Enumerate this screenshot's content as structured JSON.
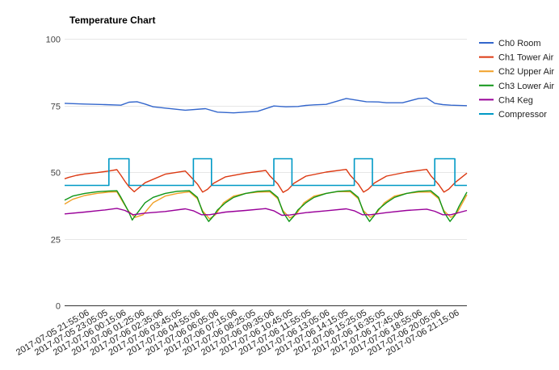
{
  "chart_data": {
    "type": "line",
    "title": "Temperature Chart",
    "xlabel": "",
    "ylabel": "",
    "ylim": [
      0,
      100
    ],
    "y_ticks": [
      0,
      25,
      50,
      75,
      100
    ],
    "grid": true,
    "legend_position": "right",
    "x_tick_labels": [
      "2017-07-05 21:55:06",
      "2017-07-05 23:05:05",
      "2017-07-06 00:15:06",
      "2017-07-06 01:25:06",
      "2017-07-06 02:35:06",
      "2017-07-06 03:45:05",
      "2017-07-06 04:55:06",
      "2017-07-06 06:05:06",
      "2017-07-06 07:15:06",
      "2017-07-06 08:25:05",
      "2017-07-06 09:35:06",
      "2017-07-06 10:45:05",
      "2017-07-06 11:55:05",
      "2017-07-06 13:05:06",
      "2017-07-06 14:15:05",
      "2017-07-06 15:25:05",
      "2017-07-06 16:35:05",
      "2017-07-06 17:45:06",
      "2017-07-06 18:55:06",
      "2017-07-06 20:05:06",
      "2017-07-06 21:15:06"
    ],
    "x_range": [
      0,
      100
    ],
    "series": [
      {
        "name": "Ch0 Room",
        "color": "#3366cc",
        "x": [
          0,
          5,
          10,
          14,
          16,
          18,
          20,
          22,
          25,
          30,
          35,
          38,
          42,
          48,
          52,
          55,
          58,
          60,
          62,
          65,
          70,
          75,
          78,
          80,
          84,
          88,
          90,
          92,
          94,
          96,
          100
        ],
        "values": [
          75.8,
          75.5,
          75.3,
          75.1,
          76.2,
          76.4,
          75.5,
          74.5,
          74.0,
          73.2,
          73.8,
          72.5,
          72.2,
          72.8,
          74.8,
          74.5,
          74.6,
          75.0,
          75.2,
          75.4,
          77.6,
          76.4,
          76.3,
          76.0,
          76.0,
          77.6,
          77.8,
          75.8,
          75.3,
          75.1,
          74.9
        ]
      },
      {
        "name": "Ch1 Tower Air",
        "color": "#dc3912",
        "x": [
          0,
          1,
          3,
          5,
          8,
          11,
          13,
          14,
          15,
          16,
          17.3,
          18,
          20,
          25,
          30,
          31,
          33,
          34.3,
          35.5,
          37,
          40,
          45,
          50,
          51,
          53,
          54.3,
          55.5,
          57,
          60,
          65,
          70,
          71,
          73,
          74.3,
          75.5,
          77,
          80,
          85,
          90,
          91,
          93,
          94.3,
          95.5,
          97,
          100
        ],
        "values": [
          47.5,
          48,
          48.8,
          49.3,
          49.8,
          50.4,
          50.9,
          48.8,
          46.5,
          44.5,
          42.6,
          43.5,
          46.0,
          49.2,
          50.4,
          48.8,
          45.5,
          42.5,
          43.5,
          45.8,
          48.2,
          49.6,
          50.6,
          48.6,
          45.5,
          42.4,
          43.4,
          45.8,
          48.5,
          50.0,
          51.0,
          48.8,
          45.5,
          42.5,
          43.6,
          45.9,
          48.5,
          50.0,
          51.0,
          48.7,
          45.3,
          42.5,
          43.6,
          46.0,
          49.6
        ]
      },
      {
        "name": "Ch2 Upper Air",
        "color": "#f1a128",
        "x": [
          0,
          2,
          5,
          8,
          11,
          13,
          14,
          15.8,
          17.5,
          19.5,
          22,
          25,
          28,
          31,
          33,
          34.3,
          36,
          37.5,
          39.5,
          42,
          45,
          48,
          51,
          53,
          54.3,
          56,
          57.5,
          59.5,
          62,
          65,
          68,
          71,
          73,
          74.3,
          76,
          77.5,
          79.5,
          82,
          85,
          88,
          91,
          93,
          94.3,
          96,
          97.5,
          100
        ],
        "values": [
          38.0,
          39.8,
          41.2,
          42.0,
          42.5,
          42.6,
          40.0,
          35.5,
          33.0,
          34.0,
          38.5,
          41.0,
          42.0,
          42.6,
          40.0,
          35.5,
          32.5,
          34.0,
          38.5,
          41.0,
          42.0,
          42.5,
          42.6,
          40.0,
          35.5,
          32.8,
          34.0,
          38.5,
          41.0,
          42.0,
          42.7,
          42.6,
          40.0,
          35.5,
          33.0,
          34.5,
          38.5,
          41.0,
          42.0,
          42.5,
          42.5,
          40.0,
          35.5,
          33.0,
          34.5,
          41.5
        ]
      },
      {
        "name": "Ch3 Lower Air",
        "color": "#109618",
        "x": [
          0,
          2,
          5,
          8,
          11,
          13,
          14,
          15.8,
          16.8,
          17.5,
          18.5,
          20,
          22,
          25,
          28,
          31,
          33,
          34.3,
          35.8,
          37,
          38,
          40,
          42,
          45,
          48,
          51,
          53,
          54.3,
          55.8,
          57,
          58,
          60,
          62,
          65,
          68,
          71,
          73,
          74.3,
          75.8,
          77,
          78,
          80,
          82,
          85,
          88,
          91,
          93,
          94.3,
          95.8,
          97,
          98,
          100
        ],
        "values": [
          39.5,
          41.0,
          42.0,
          42.6,
          42.9,
          43.0,
          40.5,
          35.5,
          32.0,
          33.5,
          35.5,
          38.5,
          40.5,
          42.0,
          42.8,
          43.0,
          40.5,
          35.0,
          31.5,
          33.5,
          35.8,
          38.5,
          40.5,
          42.0,
          42.8,
          43.0,
          40.5,
          35.0,
          31.5,
          33.5,
          35.8,
          38.5,
          40.5,
          42.0,
          42.8,
          43.0,
          40.5,
          35.0,
          31.5,
          33.8,
          36.0,
          38.5,
          40.5,
          42.0,
          42.8,
          43.0,
          40.5,
          35.0,
          31.5,
          33.8,
          37.0,
          42.5
        ]
      },
      {
        "name": "Ch4 Keg",
        "color": "#990099",
        "x": [
          0,
          5,
          10,
          13,
          15,
          17,
          20,
          25,
          30,
          32,
          34,
          36,
          40,
          45,
          50,
          52,
          54,
          56,
          60,
          65,
          70,
          72,
          74,
          76,
          80,
          85,
          90,
          92,
          94,
          96,
          100
        ],
        "values": [
          34.3,
          35.0,
          35.8,
          36.4,
          35.6,
          34.0,
          34.6,
          35.2,
          36.2,
          35.5,
          34.0,
          34.0,
          35.0,
          35.6,
          36.3,
          35.5,
          33.8,
          33.9,
          34.8,
          35.5,
          36.2,
          35.5,
          34.0,
          34.0,
          34.8,
          35.6,
          36.1,
          35.3,
          34.0,
          34.0,
          35.6
        ]
      },
      {
        "name": "Compressor",
        "color": "#0099c6",
        "x": [
          0,
          11,
          11,
          16,
          16,
          32,
          32,
          36.5,
          36.5,
          52,
          52,
          56.5,
          56.5,
          72,
          72,
          76.5,
          76.5,
          92,
          92,
          97,
          97,
          100
        ],
        "values": [
          45,
          45,
          55,
          55,
          45,
          45,
          55,
          55,
          45,
          45,
          55,
          55,
          45,
          45,
          55,
          55,
          45,
          45,
          55,
          55,
          45,
          45
        ]
      }
    ]
  }
}
